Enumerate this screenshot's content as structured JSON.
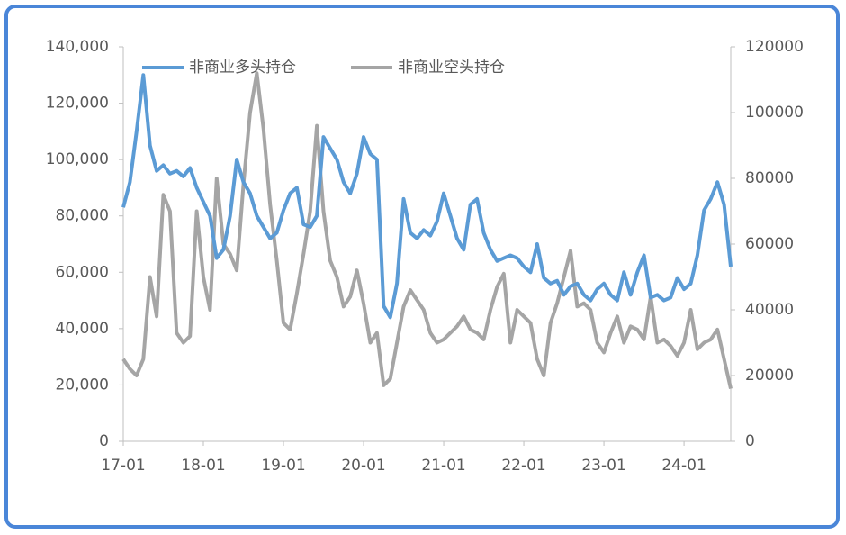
{
  "chart_data": {
    "type": "line",
    "categories": [
      "17-01",
      null,
      null,
      null,
      null,
      null,
      null,
      null,
      null,
      null,
      null,
      null,
      "18-01",
      null,
      null,
      null,
      null,
      null,
      null,
      null,
      null,
      null,
      null,
      null,
      "19-01",
      null,
      null,
      null,
      null,
      null,
      null,
      null,
      null,
      null,
      null,
      null,
      "20-01",
      null,
      null,
      null,
      null,
      null,
      null,
      null,
      null,
      null,
      null,
      null,
      "21-01",
      null,
      null,
      null,
      null,
      null,
      null,
      null,
      null,
      null,
      null,
      null,
      "22-01",
      null,
      null,
      null,
      null,
      null,
      null,
      null,
      null,
      null,
      null,
      null,
      "23-01",
      null,
      null,
      null,
      null,
      null,
      null,
      null,
      null,
      null,
      null,
      null,
      "24-01",
      null,
      null,
      null,
      null,
      null,
      null,
      null
    ],
    "series": [
      {
        "name": "非商业多头持仓",
        "color": "#5b9bd5",
        "axis": "y",
        "values": [
          83000,
          92000,
          110000,
          130000,
          105000,
          96000,
          98000,
          95000,
          96000,
          94000,
          97000,
          90000,
          85000,
          80000,
          65000,
          68000,
          80000,
          100000,
          92000,
          88000,
          80000,
          76000,
          72000,
          74000,
          82000,
          88000,
          90000,
          77000,
          76000,
          80000,
          108000,
          104000,
          100000,
          92000,
          88000,
          95000,
          108000,
          102000,
          100000,
          48000,
          44000,
          56000,
          86000,
          74000,
          72000,
          75000,
          73000,
          78000,
          88000,
          80000,
          72000,
          68000,
          84000,
          86000,
          74000,
          68000,
          64000,
          65000,
          66000,
          65000,
          62000,
          60000,
          70000,
          58000,
          56000,
          57000,
          52000,
          55000,
          56000,
          52000,
          50000,
          54000,
          56000,
          52000,
          50000,
          60000,
          52000,
          60000,
          66000,
          51000,
          52000,
          50000,
          51000,
          58000,
          54000,
          56000,
          66000,
          82000,
          86000,
          92000,
          84000,
          62000
        ]
      },
      {
        "name": "非商业空头持仓",
        "color": "#a5a5a5",
        "axis": "y2",
        "values": [
          25000,
          22000,
          20000,
          25000,
          50000,
          38000,
          75000,
          70000,
          33000,
          30000,
          32000,
          70000,
          50000,
          40000,
          80000,
          60000,
          57000,
          52000,
          78000,
          100000,
          112000,
          95000,
          72000,
          55000,
          36000,
          34000,
          45000,
          57000,
          70000,
          96000,
          70000,
          55000,
          50000,
          41000,
          44000,
          52000,
          42000,
          30000,
          33000,
          17000,
          19000,
          30000,
          41000,
          46000,
          43000,
          40000,
          33000,
          30000,
          31000,
          33000,
          35000,
          38000,
          34000,
          33000,
          31000,
          40000,
          47000,
          51000,
          30000,
          40000,
          38000,
          36000,
          25000,
          20000,
          36000,
          42000,
          50000,
          58000,
          41000,
          42000,
          40000,
          30000,
          27000,
          33000,
          38000,
          30000,
          35000,
          34000,
          31000,
          44000,
          30000,
          31000,
          29000,
          26000,
          30000,
          40000,
          28000,
          30000,
          31000,
          34000,
          25000,
          16000
        ]
      }
    ],
    "ylim": [
      0,
      140000
    ],
    "yticks": [
      0,
      {
        "value": 20000,
        "label": "20,000"
      },
      {
        "value": 40000,
        "label": "40,000"
      },
      {
        "value": 60000,
        "label": "60,000"
      },
      {
        "value": 80000,
        "label": "80,000"
      },
      {
        "value": 100000,
        "label": "100,000"
      },
      {
        "value": 120000,
        "label": "120,000"
      },
      {
        "value": 140000,
        "label": "140,000"
      }
    ],
    "y2lim": [
      0,
      120000
    ],
    "y2ticks": [
      0,
      20000,
      40000,
      60000,
      80000,
      100000,
      120000
    ],
    "legend": "top"
  }
}
